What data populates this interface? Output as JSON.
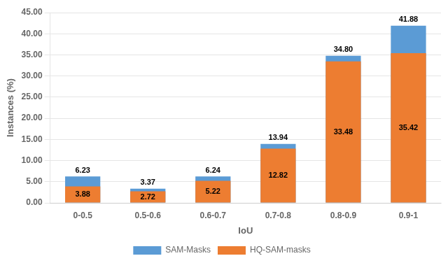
{
  "chart_data": {
    "type": "bar",
    "xlabel": "IoU",
    "ylabel": "Instances (%)",
    "categories": [
      "0-0.5",
      "0.5-0.6",
      "0.6-0.7",
      "0.7-0.8",
      "0.8-0.9",
      "0.9-1"
    ],
    "series": [
      {
        "name": "SAM-Masks",
        "color": "#5B9BD5",
        "values": [
          6.23,
          3.37,
          6.24,
          13.94,
          34.8,
          41.88
        ],
        "value_labels": [
          "6.23",
          "3.37",
          "6.24",
          "13.94",
          "34.80",
          "41.88"
        ]
      },
      {
        "name": "HQ-SAM-masks",
        "color": "#ED7D31",
        "values": [
          3.88,
          2.72,
          5.22,
          12.82,
          33.48,
          35.42
        ],
        "value_labels": [
          "3.88",
          "2.72",
          "5.22",
          "12.82",
          "33.48",
          "35.42"
        ]
      }
    ],
    "ylim": [
      0,
      45
    ],
    "yticks": [
      {
        "value": 0,
        "label": "0.00"
      },
      {
        "value": 5,
        "label": "5.00"
      },
      {
        "value": 10,
        "label": "10.00"
      },
      {
        "value": 15,
        "label": "15.00"
      },
      {
        "value": 20,
        "label": "20.00"
      },
      {
        "value": 25,
        "label": "25.00"
      },
      {
        "value": 30,
        "label": "30.00"
      },
      {
        "value": 35,
        "label": "35.00"
      },
      {
        "value": 40,
        "label": "40.00"
      },
      {
        "value": 45,
        "label": "45.00"
      }
    ],
    "grid": true,
    "legend": "bottom",
    "stacked": false,
    "data_labels": true
  }
}
